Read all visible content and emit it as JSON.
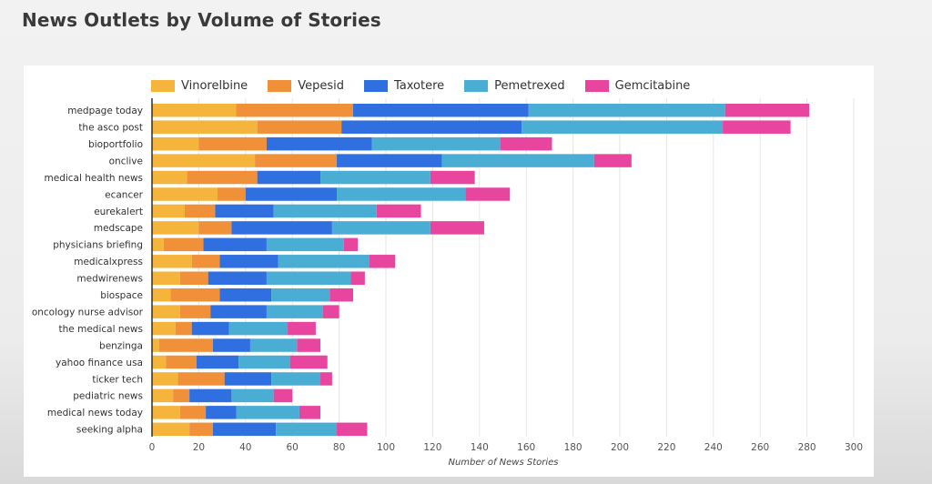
{
  "page": {
    "title": "News Outlets by Volume of Stories"
  },
  "chart_data": {
    "type": "bar",
    "orientation": "horizontal",
    "stacked": true,
    "title": "",
    "xlabel": "Number of News Stories",
    "ylabel": "",
    "xlim": [
      0,
      300
    ],
    "x_ticks": [
      "0",
      "20",
      "40",
      "60",
      "80",
      "100",
      "120",
      "140",
      "160",
      "180",
      "200",
      "220",
      "240",
      "260",
      "280",
      "300"
    ],
    "grid": "vertical",
    "legend_position": "top",
    "categories": [
      "medpage today",
      "the asco post",
      "bioportfolio",
      "onclive",
      "medical health news",
      "ecancer",
      "eurekalert",
      "medscape",
      "physicians briefing",
      "medicalxpress",
      "medwirenews",
      "biospace",
      "oncology nurse advisor",
      "the medical news",
      "benzinga",
      "yahoo finance usa",
      "ticker tech",
      "pediatric news",
      "medical news today",
      "seeking alpha"
    ],
    "series": [
      {
        "name": "Vinorelbine",
        "color": "#f5b43c",
        "values": [
          36,
          45,
          20,
          44,
          15,
          28,
          14,
          20,
          5,
          17,
          12,
          8,
          12,
          10,
          3,
          6,
          11,
          9,
          12,
          16
        ]
      },
      {
        "name": "Vepesid",
        "color": "#f0913a",
        "values": [
          50,
          36,
          29,
          35,
          30,
          12,
          13,
          14,
          17,
          12,
          12,
          21,
          13,
          7,
          23,
          13,
          20,
          7,
          11,
          10
        ]
      },
      {
        "name": "Taxotere",
        "color": "#2f6fe0",
        "values": [
          75,
          77,
          45,
          45,
          27,
          39,
          25,
          43,
          27,
          25,
          25,
          22,
          24,
          16,
          16,
          18,
          20,
          18,
          13,
          27
        ]
      },
      {
        "name": "Pemetrexed",
        "color": "#4aaed4",
        "values": [
          84,
          86,
          55,
          65,
          47,
          55,
          44,
          42,
          33,
          39,
          36,
          25,
          24,
          25,
          20,
          22,
          21,
          18,
          27,
          26
        ]
      },
      {
        "name": "Gemcitabine",
        "color": "#e8459f",
        "values": [
          36,
          29,
          22,
          16,
          19,
          19,
          19,
          23,
          6,
          11,
          6,
          10,
          7,
          12,
          10,
          16,
          5,
          8,
          9,
          13
        ]
      }
    ]
  }
}
